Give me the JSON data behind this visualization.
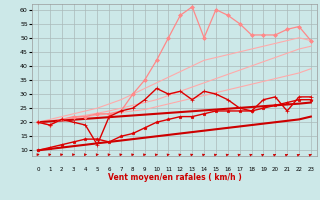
{
  "xlabel": "Vent moyen/en rafales ( km/h )",
  "xlim": [
    -0.5,
    23.5
  ],
  "ylim": [
    8,
    62
  ],
  "yticks": [
    10,
    15,
    20,
    25,
    30,
    35,
    40,
    45,
    50,
    55,
    60
  ],
  "xticks": [
    0,
    1,
    2,
    3,
    4,
    5,
    6,
    7,
    8,
    9,
    10,
    11,
    12,
    13,
    14,
    15,
    16,
    17,
    18,
    19,
    20,
    21,
    22,
    23
  ],
  "bg_color": "#cce8e8",
  "grid_color": "#aababa",
  "series": [
    {
      "x": [
        0,
        1,
        2,
        3,
        4,
        5,
        6,
        7,
        8,
        9,
        10,
        11,
        12,
        13,
        14,
        15,
        16,
        17,
        18,
        19,
        20,
        21,
        22,
        23
      ],
      "y": [
        10,
        10.5,
        11,
        11.5,
        12,
        12.5,
        13,
        13.5,
        14,
        14.5,
        15,
        15.5,
        16,
        16.5,
        17,
        17.5,
        18,
        18.5,
        19,
        19.5,
        20,
        20.5,
        21,
        22
      ],
      "color": "#ffaaaa",
      "lw": 0.8,
      "marker": "None",
      "ms": 0,
      "zorder": 2
    },
    {
      "x": [
        0,
        1,
        2,
        3,
        4,
        5,
        6,
        7,
        8,
        9,
        10,
        11,
        12,
        13,
        14,
        15,
        16,
        17,
        18,
        19,
        20,
        21,
        22,
        23
      ],
      "y": [
        20,
        20.5,
        21,
        21.5,
        22,
        22.5,
        23,
        23.5,
        24,
        24.5,
        25.5,
        26.5,
        27.5,
        28.5,
        29.5,
        30.5,
        31.5,
        32.5,
        33.5,
        34.5,
        35.5,
        36.5,
        37.5,
        39
      ],
      "color": "#ffaaaa",
      "lw": 0.8,
      "marker": "None",
      "ms": 0,
      "zorder": 2
    },
    {
      "x": [
        0,
        1,
        2,
        3,
        4,
        5,
        6,
        7,
        8,
        9,
        10,
        11,
        12,
        13,
        14,
        15,
        16,
        17,
        18,
        19,
        20,
        21,
        22,
        23
      ],
      "y": [
        20,
        20.5,
        21,
        21.8,
        22.5,
        23.2,
        24,
        25,
        26,
        27,
        28,
        29.5,
        31,
        32.5,
        34,
        35.5,
        37,
        38.5,
        40,
        41.5,
        43,
        44.5,
        46,
        47
      ],
      "color": "#ffaaaa",
      "lw": 0.8,
      "marker": "None",
      "ms": 0,
      "zorder": 2
    },
    {
      "x": [
        0,
        1,
        2,
        3,
        4,
        5,
        6,
        7,
        8,
        9,
        10,
        11,
        12,
        13,
        14,
        15,
        16,
        17,
        18,
        19,
        20,
        21,
        22,
        23
      ],
      "y": [
        20,
        21,
        22,
        23,
        24,
        25,
        26.5,
        28,
        30,
        32,
        34,
        36,
        38,
        40,
        42,
        43,
        44,
        45,
        46,
        47,
        48,
        49,
        50,
        49
      ],
      "color": "#ffaaaa",
      "lw": 0.8,
      "marker": "None",
      "ms": 0,
      "zorder": 2
    },
    {
      "x": [
        0,
        1,
        2,
        3,
        4,
        5,
        6,
        7,
        8,
        9,
        10,
        11,
        12,
        13,
        14,
        15,
        16,
        17,
        18,
        19,
        20,
        21,
        22,
        23
      ],
      "y": [
        20,
        19,
        21,
        22,
        22,
        23,
        23,
        24,
        30,
        35,
        42,
        50,
        58,
        61,
        50,
        60,
        58,
        55,
        51,
        51,
        51,
        53,
        54,
        49
      ],
      "color": "#ff8888",
      "lw": 0.9,
      "marker": "D",
      "ms": 2.0,
      "zorder": 4
    },
    {
      "x": [
        0,
        1,
        2,
        3,
        4,
        5,
        6,
        7,
        8,
        9,
        10,
        11,
        12,
        13,
        14,
        15,
        16,
        17,
        18,
        19,
        20,
        21,
        22,
        23
      ],
      "y": [
        20,
        19,
        21,
        20,
        19,
        12,
        22,
        24,
        25,
        28,
        32,
        30,
        31,
        28,
        31,
        30,
        28,
        25,
        24,
        28,
        29,
        24,
        29,
        29
      ],
      "color": "#dd0000",
      "lw": 1.0,
      "marker": "+",
      "ms": 3.0,
      "zorder": 5
    },
    {
      "x": [
        0,
        1,
        2,
        3,
        4,
        5,
        6,
        7,
        8,
        9,
        10,
        11,
        12,
        13,
        14,
        15,
        16,
        17,
        18,
        19,
        20,
        21,
        22,
        23
      ],
      "y": [
        10,
        11,
        12,
        13,
        14,
        14,
        13,
        15,
        16,
        18,
        20,
        21,
        22,
        22,
        23,
        24,
        24,
        24,
        24,
        25,
        26,
        27,
        28,
        28
      ],
      "color": "#dd0000",
      "lw": 1.0,
      "marker": "*",
      "ms": 2.5,
      "zorder": 5
    },
    {
      "x": [
        0,
        1,
        2,
        3,
        4,
        5,
        6,
        7,
        8,
        9,
        10,
        11,
        12,
        13,
        14,
        15,
        16,
        17,
        18,
        19,
        20,
        21,
        22,
        23
      ],
      "y": [
        10,
        10.5,
        11,
        11.5,
        12,
        12.5,
        13,
        13.5,
        14,
        14.5,
        15,
        15.5,
        16,
        16.5,
        17,
        17.5,
        18,
        18.5,
        19,
        19.5,
        20,
        20.5,
        21,
        22
      ],
      "color": "#cc0000",
      "lw": 1.5,
      "marker": "None",
      "ms": 0,
      "zorder": 3
    },
    {
      "x": [
        0,
        1,
        2,
        3,
        4,
        5,
        6,
        7,
        8,
        9,
        10,
        11,
        12,
        13,
        14,
        15,
        16,
        17,
        18,
        19,
        20,
        21,
        22,
        23
      ],
      "y": [
        20,
        20.3,
        20.6,
        20.9,
        21.2,
        21.5,
        21.8,
        22.1,
        22.4,
        22.7,
        23,
        23.3,
        23.6,
        23.9,
        24.2,
        24.5,
        24.8,
        25.1,
        25.4,
        25.7,
        26,
        26.3,
        26.6,
        27
      ],
      "color": "#cc0000",
      "lw": 1.5,
      "marker": "None",
      "ms": 0,
      "zorder": 3
    }
  ]
}
